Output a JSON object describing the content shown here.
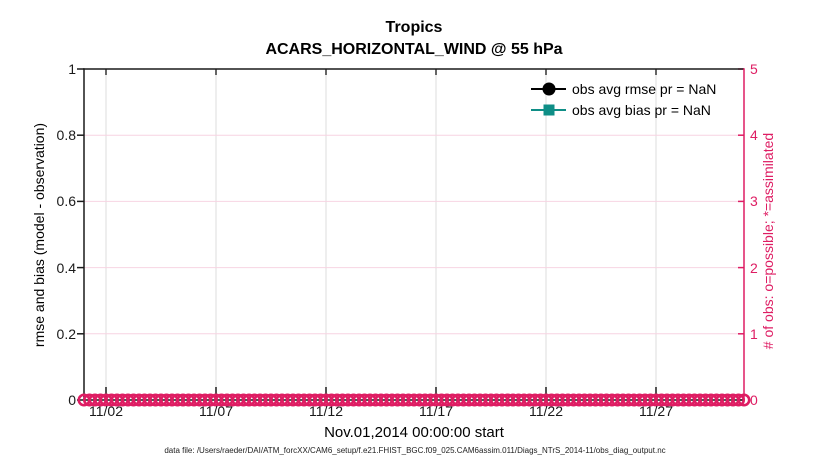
{
  "figure": {
    "title": "Tropics",
    "subtitle": "ACARS_HORIZONTAL_WIND @ 55 hPa",
    "xlabel": "Nov.01,2014 00:00:00 start",
    "ylabel_left": "rmse and bias (model - observation)",
    "ylabel_right": "# of obs: o=possible; *=assimilated",
    "datafile": "data file: /Users/raeder/DAI/ATM_forcXX/CAM6_setup/f.e21.FHIST_BGC.f09_025.CAM6assim.011/Diags_NTrS_2014-11/obs_diag_output.nc"
  },
  "legend": {
    "items": [
      {
        "label": "obs avg rmse pr = NaN",
        "marker": "filled-circle",
        "color": "#000000"
      },
      {
        "label": "obs avg bias pr = NaN",
        "marker": "filled-square",
        "color": "#0F8E86"
      }
    ]
  },
  "colors": {
    "accent_pink": "#DE1D63",
    "teal": "#0F8E86",
    "axis_black": "#1a1a1a",
    "grid_gray": "#dcdcdc",
    "grid_pink": "#f7d4e2",
    "tick_dark": "#333333"
  },
  "chart_data": {
    "type": "line",
    "title": "Tropics",
    "subtitle": "ACARS_HORIZONTAL_WIND @ 55 hPa",
    "xlabel": "Nov.01,2014 00:00:00 start",
    "x_axis": {
      "start": "Nov.01,2014 00:00:00",
      "range_days_from_start": [
        0,
        30
      ],
      "grid": true,
      "ticks": [
        {
          "day": 1,
          "label": "11/02"
        },
        {
          "day": 6,
          "label": "11/07"
        },
        {
          "day": 11,
          "label": "11/12"
        },
        {
          "day": 16,
          "label": "11/17"
        },
        {
          "day": 21,
          "label": "11/22"
        },
        {
          "day": 26,
          "label": "11/27"
        }
      ]
    },
    "y_axis_left": {
      "label": "rmse and bias (model - observation)",
      "min": 0,
      "max": 1,
      "tick_values": [
        0,
        0.2,
        0.4,
        0.6,
        0.8,
        1
      ],
      "tick_labels": [
        "0",
        "0.2",
        "0.4",
        "0.6",
        "0.8",
        "1"
      ],
      "color": "#000000"
    },
    "y_axis_right": {
      "label": "# of obs: o=possible; *=assimilated",
      "min": 0,
      "max": 5,
      "tick_values": [
        0,
        1,
        2,
        3,
        4,
        5
      ],
      "tick_labels": [
        "0",
        "1",
        "2",
        "3",
        "4",
        "5"
      ],
      "color": "#DE1D63",
      "grid": true
    },
    "legend_position": "top-right-inside",
    "series": [
      {
        "name": "obs avg rmse pr = NaN",
        "axis": "left",
        "color": "#000000",
        "marker": "filled-circle",
        "values": "NaN"
      },
      {
        "name": "obs avg bias pr = NaN",
        "axis": "left",
        "color": "#0F8E86",
        "marker": "filled-square",
        "values": "NaN"
      },
      {
        "name": "# of obs possible",
        "axis": "right",
        "color": "#DE1D63",
        "marker": "open-circle",
        "constant_value": 0,
        "start_day": 0,
        "end_day": 30,
        "step_days": 0.25
      }
    ]
  }
}
